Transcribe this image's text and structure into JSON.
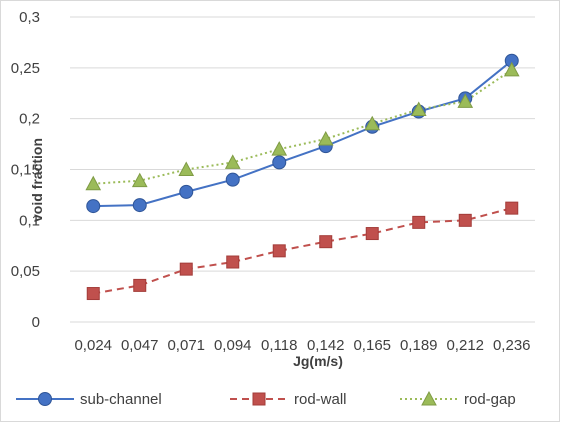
{
  "chart_data": {
    "type": "line",
    "title": "",
    "xlabel": "Jg(m/s)",
    "ylabel": "void fraction",
    "categories": [
      "0,024",
      "0,047",
      "0,071",
      "0,094",
      "0,118",
      "0,142",
      "0,165",
      "0,189",
      "0,212",
      "0,236"
    ],
    "ylim": [
      0,
      0.3
    ],
    "yticks": [
      0,
      0.05,
      0.1,
      0.15,
      0.2,
      0.25,
      0.3
    ],
    "ytick_labels": [
      "0",
      "0,05",
      "0,1",
      "0,15",
      "0,2",
      "0,25",
      "0,3"
    ],
    "grid": true,
    "legend_position": "bottom",
    "series": [
      {
        "name": "sub-channel",
        "values": [
          0.114,
          0.115,
          0.128,
          0.14,
          0.157,
          0.173,
          0.192,
          0.207,
          0.22,
          0.257
        ],
        "color": "#4472c4",
        "line_style": "solid",
        "marker": "circle"
      },
      {
        "name": "rod-wall",
        "values": [
          0.028,
          0.036,
          0.052,
          0.059,
          0.07,
          0.079,
          0.087,
          0.098,
          0.1,
          0.112
        ],
        "color": "#c0504d",
        "line_style": "dashed",
        "marker": "square"
      },
      {
        "name": "rod-gap",
        "values": [
          0.136,
          0.139,
          0.15,
          0.157,
          0.17,
          0.18,
          0.195,
          0.209,
          0.217,
          0.248
        ],
        "color": "#9bbb59",
        "line_style": "dotted",
        "marker": "triangle"
      }
    ]
  }
}
